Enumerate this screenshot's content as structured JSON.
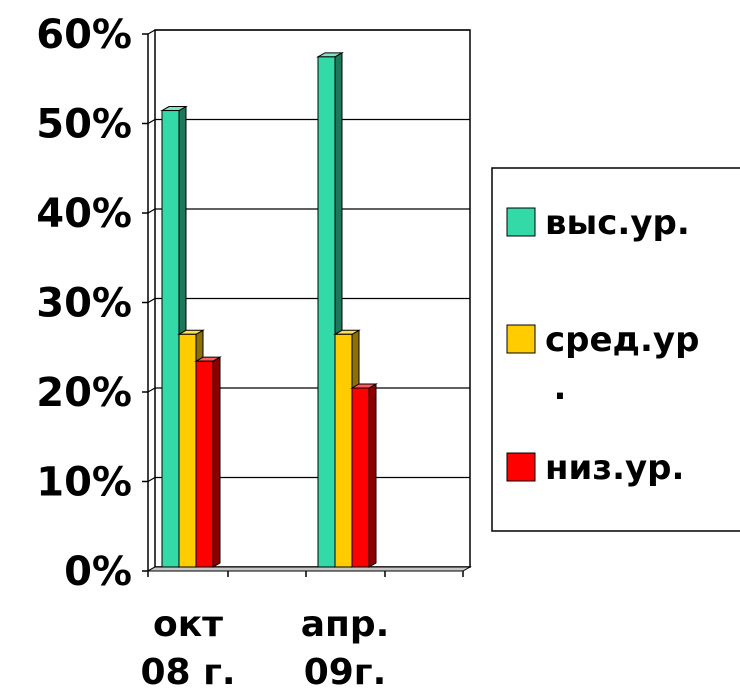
{
  "chart_data": {
    "type": "bar",
    "categories": [
      {
        "line1": "окт",
        "line2": "08 г."
      },
      {
        "line1": "апр.",
        "line2": "09г."
      }
    ],
    "series": [
      {
        "name": "выс.ур.",
        "color": "#33d9a6",
        "values": [
          51,
          57
        ]
      },
      {
        "name": "сред.ур.",
        "color": "#ffcc00",
        "values": [
          26,
          26
        ]
      },
      {
        "name": "низ.ур.",
        "color": "#ff0000",
        "values": [
          23,
          20
        ]
      }
    ],
    "y_ticks": [
      "0%",
      "10%",
      "20%",
      "30%",
      "40%",
      "50%",
      "60%"
    ],
    "ylim": [
      0,
      60
    ],
    "grid": true,
    "legend_position": "right",
    "title": "",
    "xlabel": "",
    "ylabel": ""
  }
}
